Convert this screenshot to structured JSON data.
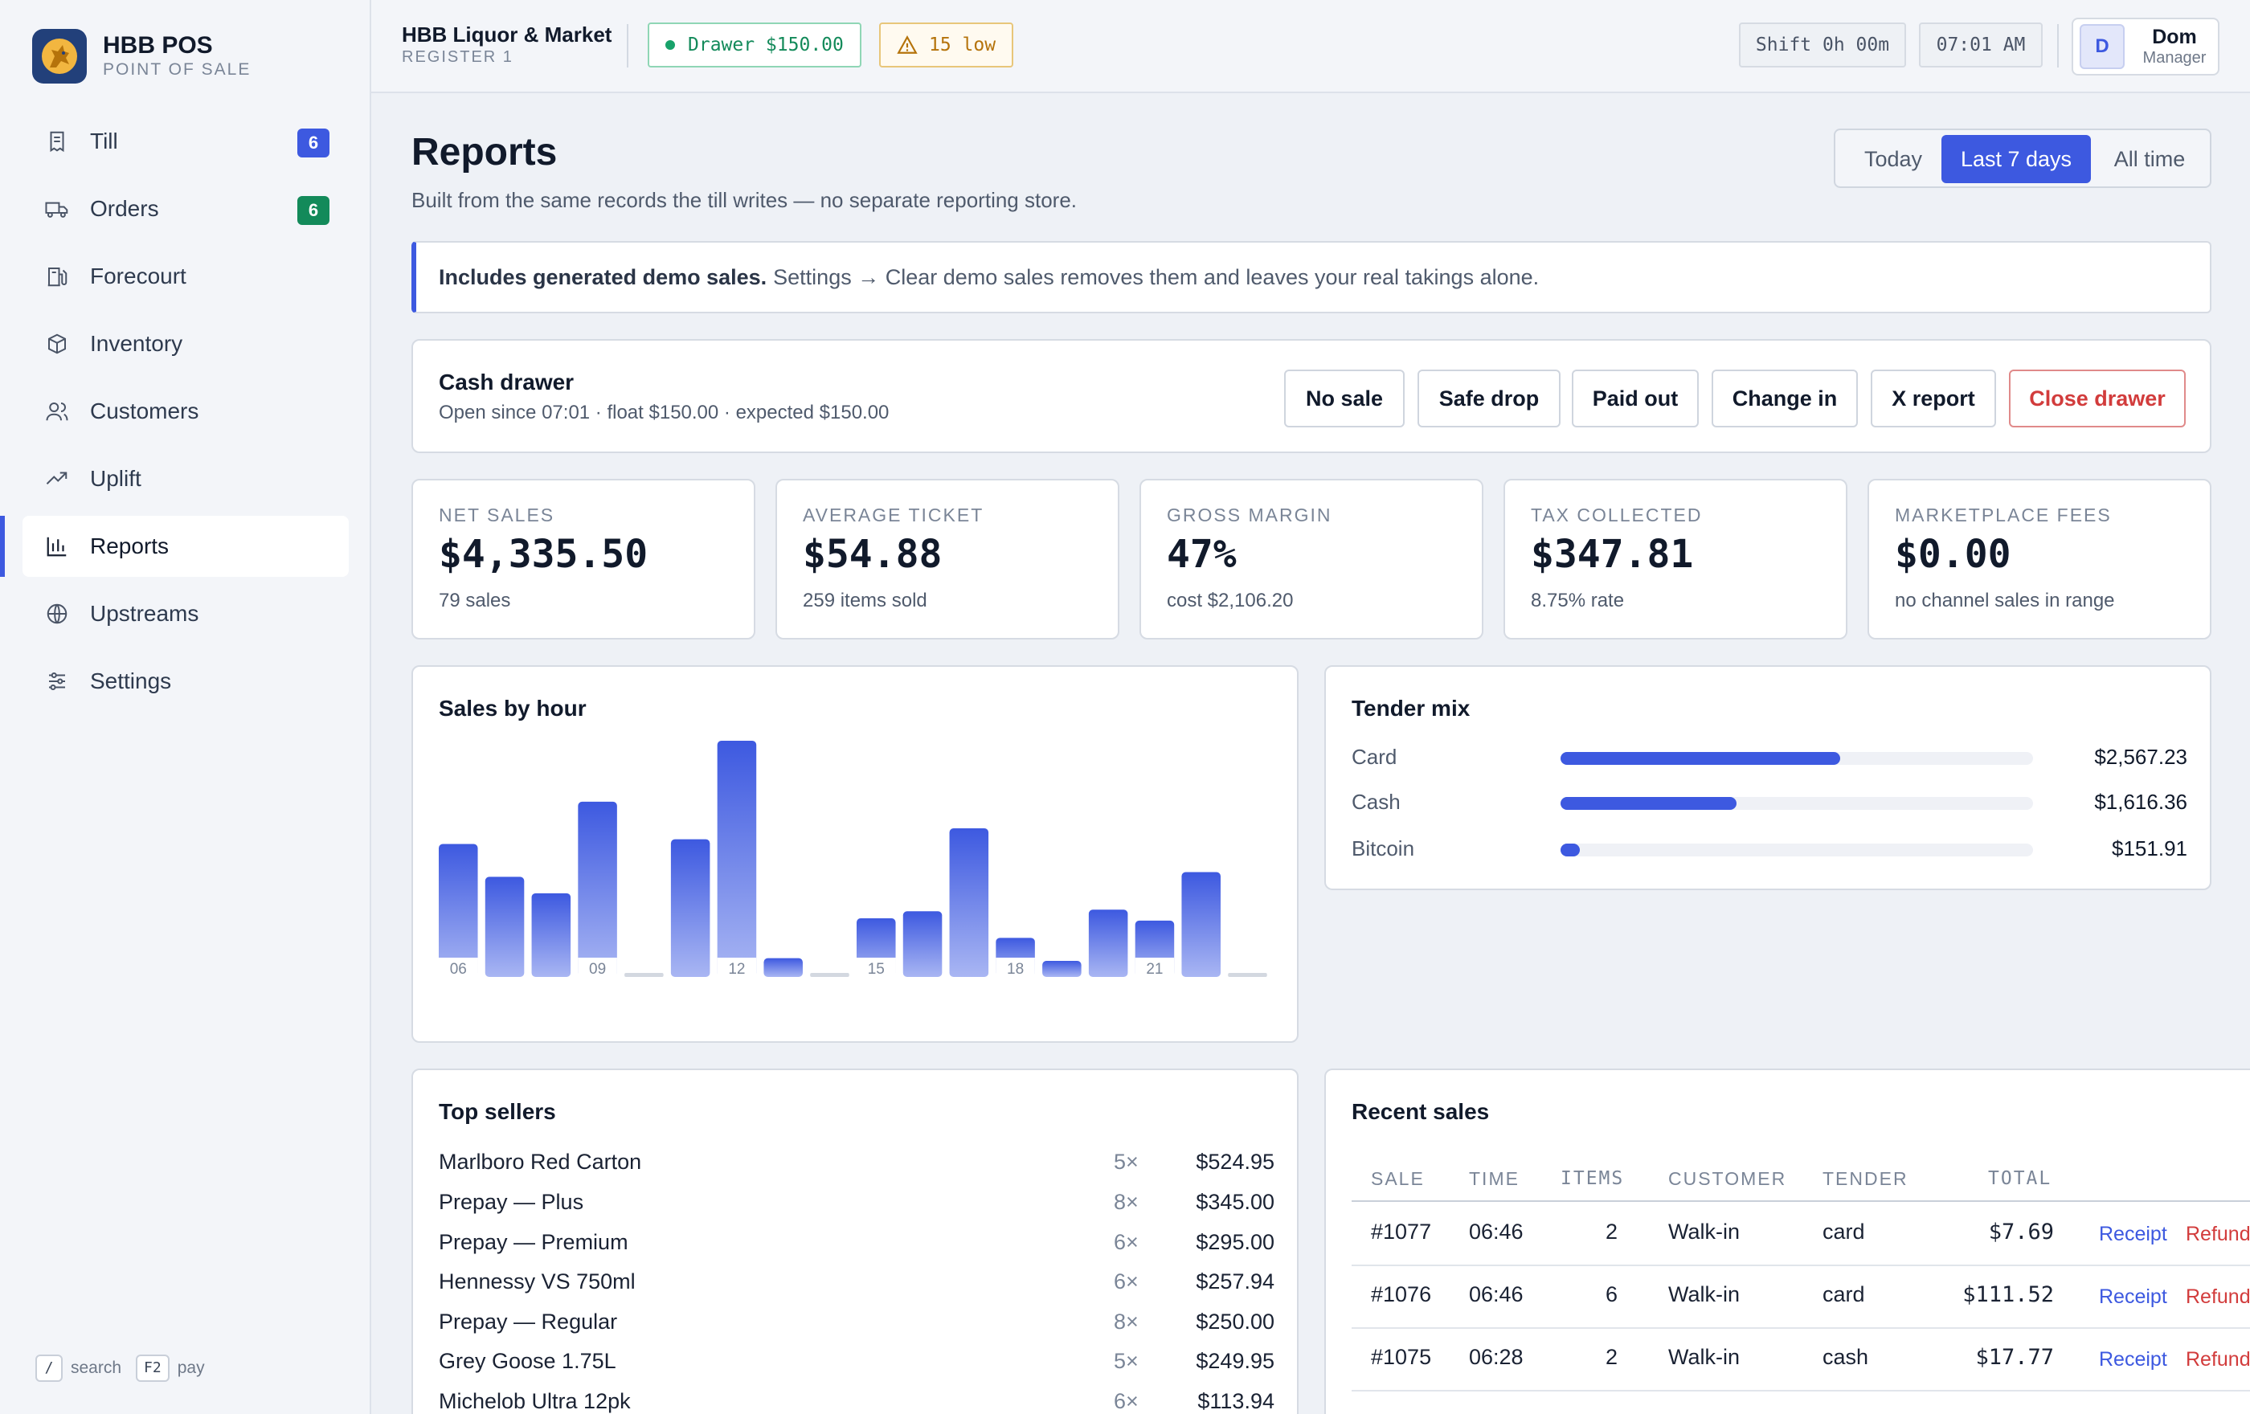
{
  "sidebar": {
    "brand_title": "HBB POS",
    "brand_sub": "POINT OF SALE",
    "items": [
      {
        "label": "Till",
        "badge": "6",
        "icon": "receipt-icon"
      },
      {
        "label": "Orders",
        "badge": "6",
        "icon": "truck-icon"
      },
      {
        "label": "Forecourt",
        "icon": "fuel-pump-icon"
      },
      {
        "label": "Inventory",
        "icon": "box-icon"
      },
      {
        "label": "Customers",
        "icon": "users-icon"
      },
      {
        "label": "Uplift",
        "icon": "trending-up-icon"
      },
      {
        "label": "Reports",
        "icon": "bar-chart-icon",
        "active": true
      },
      {
        "label": "Upstreams",
        "icon": "globe-icon"
      },
      {
        "label": "Settings",
        "icon": "sliders-icon"
      }
    ],
    "shortcuts": {
      "search_key": "/",
      "search_label": "search",
      "pay_key": "F2",
      "pay_label": "pay"
    }
  },
  "topbar": {
    "store_name": "HBB Liquor & Market",
    "register": "REGISTER 1",
    "drawer": "Drawer $150.00",
    "low_stock": "15 low",
    "shift": "Shift 0h 00m",
    "clock": "07:01 AM",
    "user_initial": "D",
    "user_name": "Dom",
    "user_role": "Manager"
  },
  "colors": {
    "accent": "#3d59e0",
    "success": "#18a26a",
    "warning": "#b5730b",
    "danger": "#d23c3c"
  },
  "page": {
    "title": "Reports",
    "subtitle": "Built from the same records the till writes — no separate reporting store.",
    "ranges": [
      "Today",
      "Last 7 days",
      "All time"
    ],
    "active_range": "Last 7 days"
  },
  "banner": {
    "bold": "Includes generated demo sales.",
    "text": "Settings → Clear demo sales removes them and leaves your real takings alone."
  },
  "drawer": {
    "title": "Cash drawer",
    "meta": "Open since 07:01 · float $150.00 · expected $150.00",
    "buttons": {
      "no_sale": "No sale",
      "safe_drop": "Safe drop",
      "paid_out": "Paid out",
      "change_in": "Change in",
      "x_report": "X report",
      "close_drawer": "Close drawer"
    }
  },
  "stats": [
    {
      "label": "NET SALES",
      "value": "$4,335.50",
      "note": "79 sales"
    },
    {
      "label": "AVERAGE TICKET",
      "value": "$54.88",
      "note": "259 items sold"
    },
    {
      "label": "GROSS MARGIN",
      "value": "47%",
      "note": "cost $2,106.20"
    },
    {
      "label": "TAX COLLECTED",
      "value": "$347.81",
      "note": "8.75% rate"
    },
    {
      "label": "MARKETPLACE FEES",
      "value": "$0.00",
      "note": "no channel sales in range"
    }
  ],
  "chart_data": {
    "type": "bar",
    "title": "Sales by hour",
    "categories": [
      "06",
      "07",
      "08",
      "09",
      "10",
      "11",
      "12",
      "13",
      "14",
      "15",
      "16",
      "17",
      "18",
      "19",
      "20",
      "21",
      "22",
      "23"
    ],
    "tick_labels": [
      "06",
      "",
      "",
      "09",
      "",
      "",
      "12",
      "",
      "",
      "15",
      "",
      "",
      "18",
      "",
      "",
      "21",
      "",
      ""
    ],
    "values": [
      170,
      128,
      107,
      224,
      0,
      176,
      302,
      24,
      0,
      75,
      84,
      190,
      50,
      20,
      86,
      72,
      134,
      0
    ],
    "ylim": [
      0,
      302
    ],
    "grid": false,
    "legend": "none"
  },
  "tender": {
    "title": "Tender mix",
    "rows": [
      {
        "name": "Card",
        "amount": "$2,567.23",
        "share": 0.592
      },
      {
        "name": "Cash",
        "amount": "$1,616.36",
        "share": 0.373
      },
      {
        "name": "Bitcoin",
        "amount": "$151.91",
        "share": 0.035
      }
    ]
  },
  "top_sellers": {
    "title": "Top sellers",
    "rows": [
      {
        "name": "Marlboro Red Carton",
        "qty": "5×",
        "amount": "$524.95"
      },
      {
        "name": "Prepay — Plus",
        "qty": "8×",
        "amount": "$345.00"
      },
      {
        "name": "Prepay — Premium",
        "qty": "6×",
        "amount": "$295.00"
      },
      {
        "name": "Hennessy VS 750ml",
        "qty": "6×",
        "amount": "$257.94"
      },
      {
        "name": "Prepay — Regular",
        "qty": "8×",
        "amount": "$250.00"
      },
      {
        "name": "Grey Goose 1.75L",
        "qty": "5×",
        "amount": "$249.95"
      },
      {
        "name": "Michelob Ultra 12pk",
        "qty": "6×",
        "amount": "$113.94"
      }
    ]
  },
  "recent": {
    "title": "Recent sales",
    "columns": {
      "sale": "SALE",
      "time": "TIME",
      "items": "ITEMS",
      "customer": "CUSTOMER",
      "tender": "TENDER",
      "total": "TOTAL"
    },
    "rows": [
      {
        "sale": "#1077",
        "time": "06:46",
        "items": "2",
        "customer": "Walk-in",
        "tender": "card",
        "total": "$7.69",
        "receipt": "Receipt",
        "refund": "Refund"
      },
      {
        "sale": "#1076",
        "time": "06:46",
        "items": "6",
        "customer": "Walk-in",
        "tender": "card",
        "total": "$111.52",
        "receipt": "Receipt",
        "refund": "Refund"
      },
      {
        "sale": "#1075",
        "time": "06:28",
        "items": "2",
        "customer": "Walk-in",
        "tender": "cash",
        "total": "$17.77",
        "receipt": "Receipt",
        "refund": "Refund"
      }
    ]
  }
}
